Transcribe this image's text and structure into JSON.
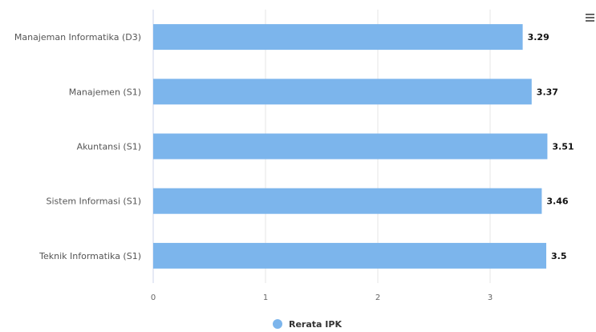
{
  "chart_data": {
    "type": "bar",
    "orientation": "horizontal",
    "categories": [
      "Manajeman Informatika (D3)",
      "Manajemen (S1)",
      "Akuntansi (S1)",
      "Sistem Informasi (S1)",
      "Teknik Informatika (S1)"
    ],
    "series": [
      {
        "name": "Rerata IPK",
        "values": [
          3.29,
          3.37,
          3.51,
          3.46,
          3.5
        ],
        "data_labels": [
          "3.29",
          "3.37",
          "3.51",
          "3.46",
          "3.5"
        ],
        "color": "#7cb5ec"
      }
    ],
    "x_ticks": [
      "0",
      "1",
      "2",
      "3"
    ],
    "xlim": [
      0,
      3.8
    ],
    "grid": true,
    "legend_position": "bottom-center"
  },
  "colors": {
    "bar": "#7cb5ec",
    "grid": "#e6e6e6",
    "axis": "#ccd6eb"
  },
  "toolbar": {
    "menu_icon": "hamburger-menu-icon"
  }
}
